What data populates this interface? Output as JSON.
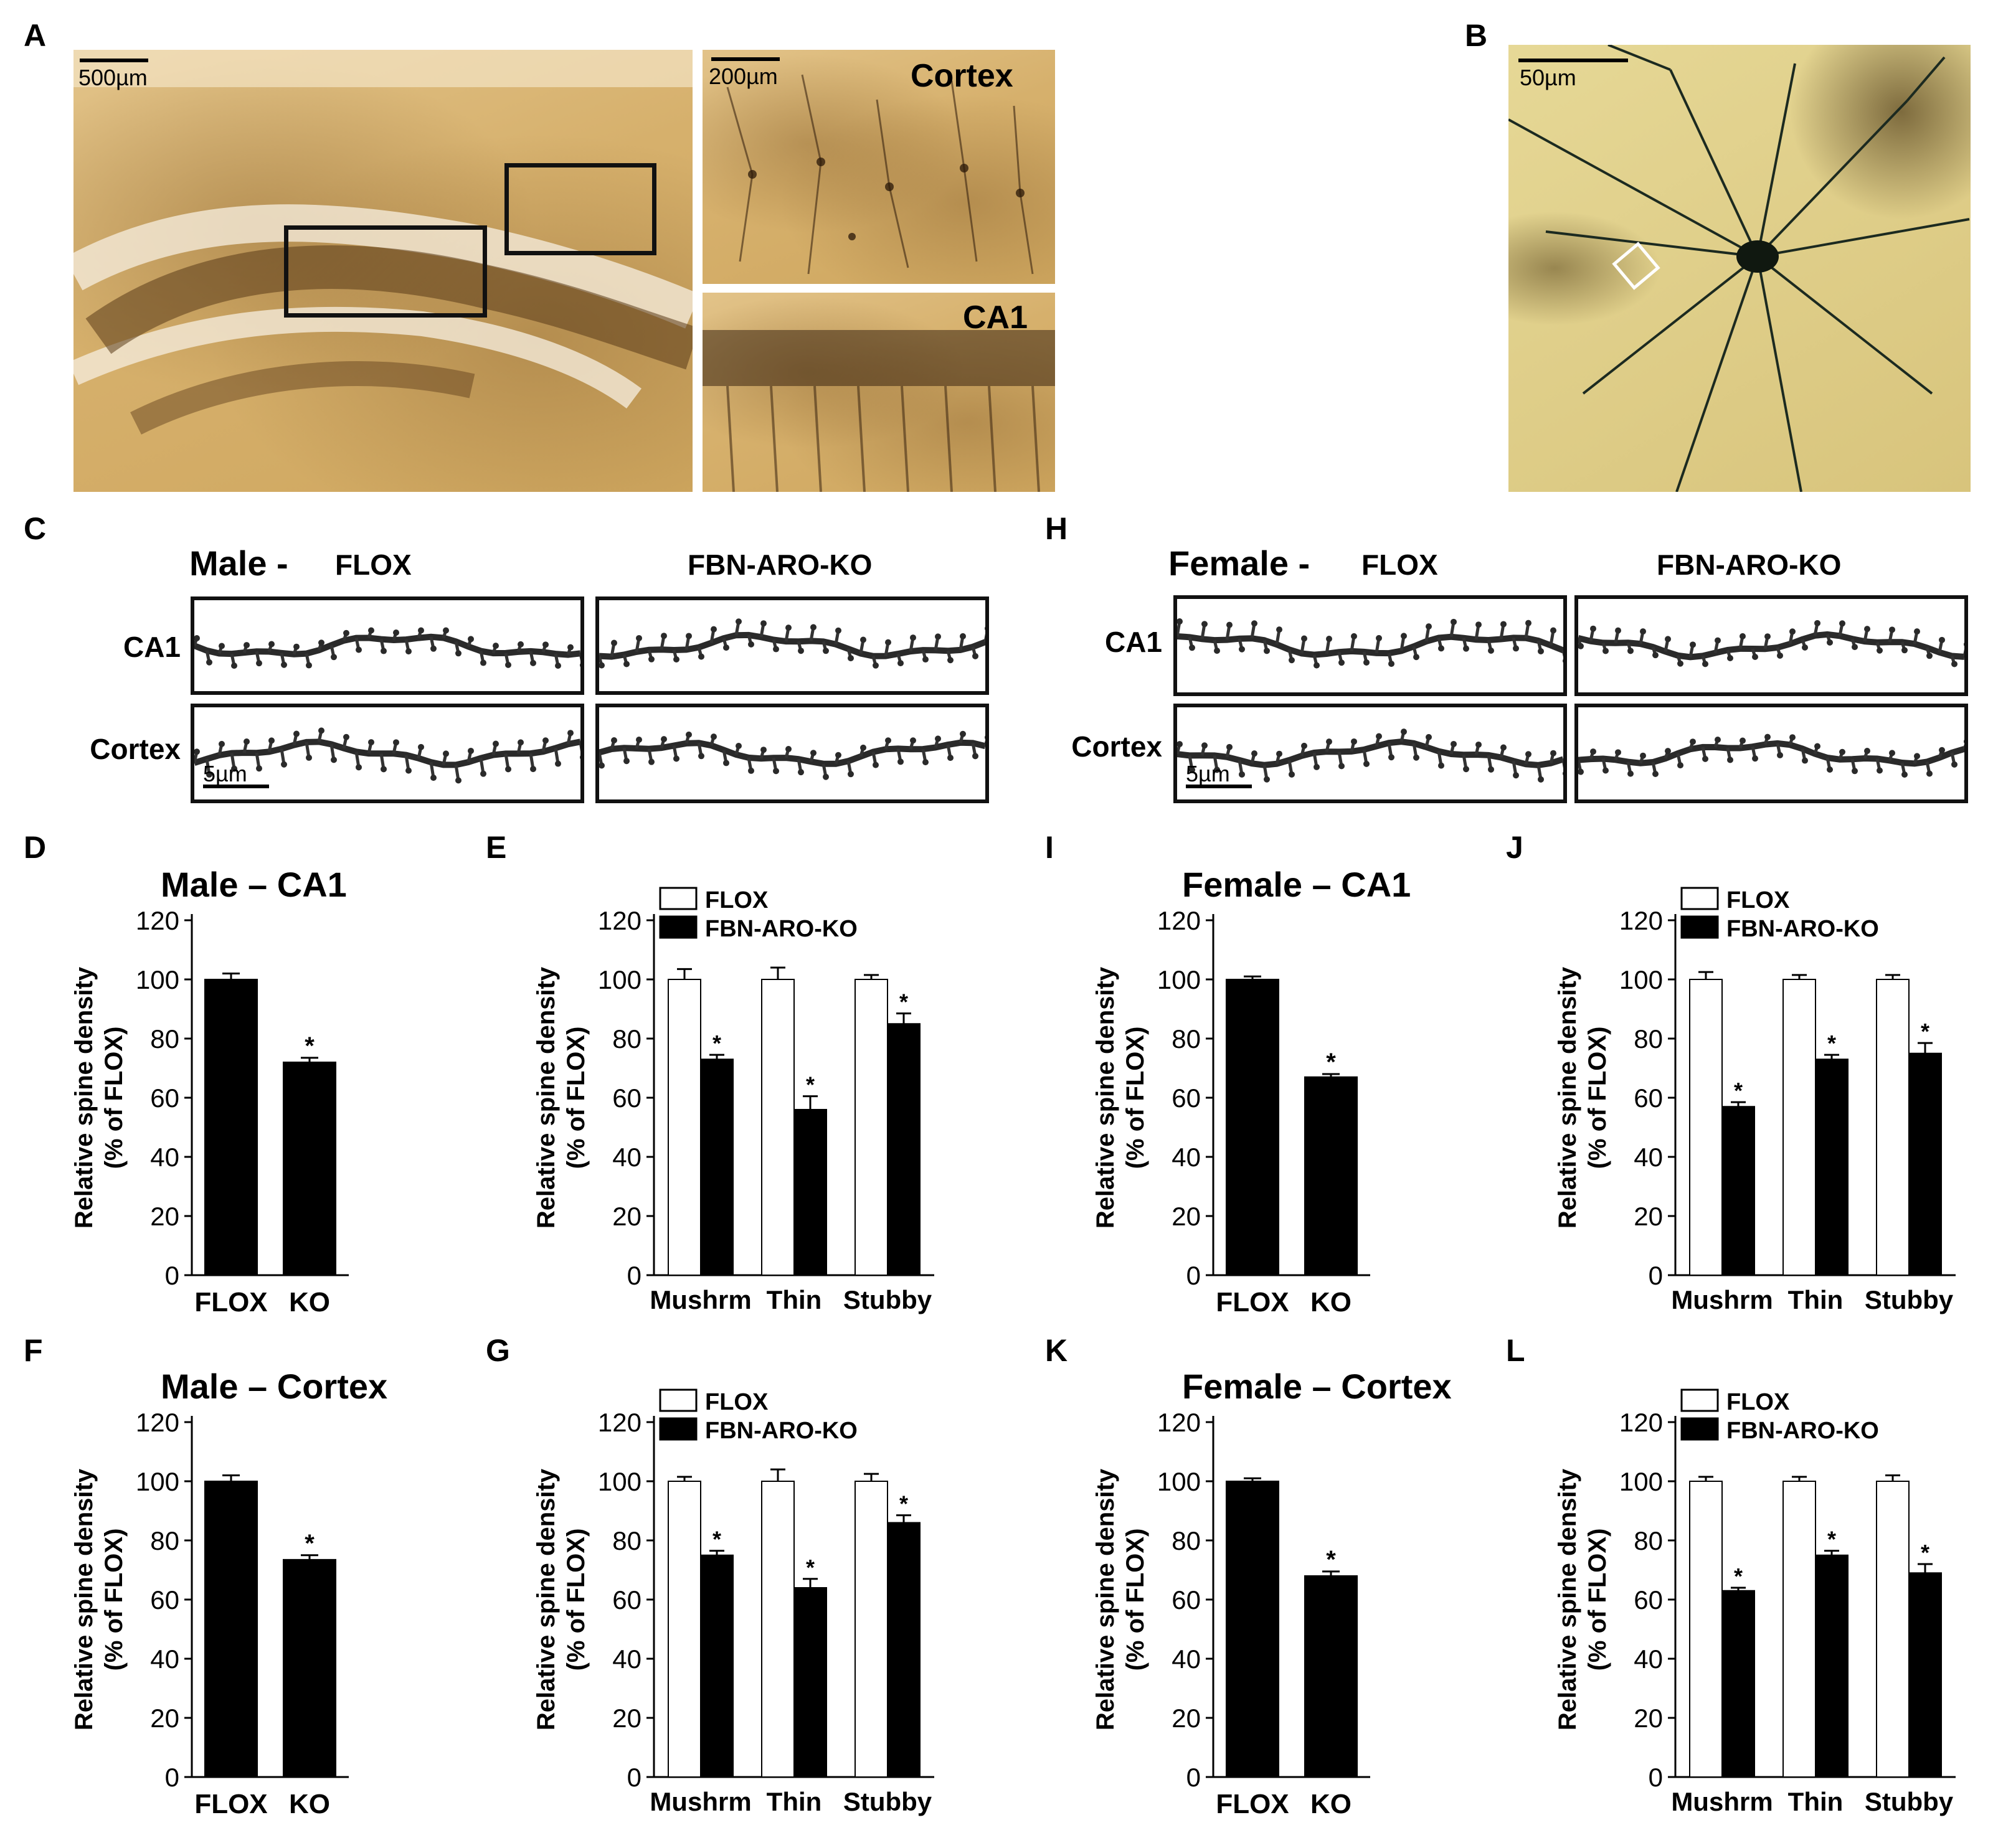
{
  "panel_letters": [
    "A",
    "B",
    "C",
    "D",
    "E",
    "F",
    "G",
    "H",
    "I",
    "J",
    "K",
    "L"
  ],
  "panel_a": {
    "scale_main": "500µm",
    "scale_inset": "200µm",
    "inset_top_label": "Cortex",
    "inset_bottom_label": "CA1"
  },
  "panel_b": {
    "scale": "50µm"
  },
  "panel_c": {
    "sex": "Male -",
    "group1": "FLOX",
    "group2": "FBN-ARO-KO",
    "row1": "CA1",
    "row2": "Cortex",
    "scale": "5µm"
  },
  "panel_h": {
    "sex": "Female -",
    "group1": "FLOX",
    "group2": "FBN-ARO-KO",
    "row1": "CA1",
    "row2": "Cortex",
    "scale": "5µm"
  },
  "chart_data": [
    {
      "panel": "D",
      "type": "bar",
      "title": "Male – CA1",
      "ylabel": "Relative spine density\n(% of FLOX)",
      "yticks": [
        0,
        20,
        40,
        60,
        80,
        100,
        120
      ],
      "ylim": [
        0,
        120
      ],
      "categories": [
        "FLOX",
        "KO"
      ],
      "series": [
        {
          "values": [
            100,
            72
          ],
          "errors": [
            2,
            1.5
          ],
          "significant": [
            false,
            true
          ]
        }
      ],
      "bar_color": "#000000"
    },
    {
      "panel": "E",
      "type": "bar",
      "title": "",
      "ylabel": "Relative spine density\n(% of FLOX)",
      "yticks": [
        0,
        20,
        40,
        60,
        80,
        100,
        120
      ],
      "ylim": [
        0,
        120
      ],
      "categories": [
        "Mushrm",
        "Thin",
        "Stubby"
      ],
      "series": [
        {
          "name": "FLOX",
          "values": [
            100,
            100,
            100
          ],
          "errors": [
            3.5,
            4,
            1.5
          ],
          "significant": [
            false,
            false,
            false
          ],
          "fill": "#ffffff"
        },
        {
          "name": "FBN-ARO-KO",
          "values": [
            73,
            56,
            85
          ],
          "errors": [
            1.5,
            4.5,
            3.5
          ],
          "significant": [
            true,
            true,
            true
          ],
          "fill": "#000000"
        }
      ]
    },
    {
      "panel": "F",
      "type": "bar",
      "title": "Male – Cortex",
      "ylabel": "Relative spine density\n(% of FLOX)",
      "yticks": [
        0,
        20,
        40,
        60,
        80,
        100,
        120
      ],
      "ylim": [
        0,
        120
      ],
      "categories": [
        "FLOX",
        "KO"
      ],
      "series": [
        {
          "values": [
            100,
            73.5
          ],
          "errors": [
            2,
            1.5
          ],
          "significant": [
            false,
            true
          ]
        }
      ],
      "bar_color": "#000000"
    },
    {
      "panel": "G",
      "type": "bar",
      "title": "",
      "ylabel": "Relative spine density\n(% of FLOX)",
      "yticks": [
        0,
        20,
        40,
        60,
        80,
        100,
        120
      ],
      "ylim": [
        0,
        120
      ],
      "categories": [
        "Mushrm",
        "Thin",
        "Stubby"
      ],
      "series": [
        {
          "name": "FLOX",
          "values": [
            100,
            100,
            100
          ],
          "errors": [
            1.5,
            4,
            2.5
          ],
          "significant": [
            false,
            false,
            false
          ],
          "fill": "#ffffff"
        },
        {
          "name": "FBN-ARO-KO",
          "values": [
            75,
            64,
            86
          ],
          "errors": [
            1.5,
            3,
            2.5
          ],
          "significant": [
            true,
            true,
            true
          ],
          "fill": "#000000"
        }
      ]
    },
    {
      "panel": "I",
      "type": "bar",
      "title": "Female – CA1",
      "ylabel": "Relative spine density\n(% of FLOX)",
      "yticks": [
        0,
        20,
        40,
        60,
        80,
        100,
        120
      ],
      "ylim": [
        0,
        120
      ],
      "categories": [
        "FLOX",
        "KO"
      ],
      "series": [
        {
          "values": [
            100,
            67
          ],
          "errors": [
            1,
            1
          ],
          "significant": [
            false,
            true
          ]
        }
      ],
      "bar_color": "#000000"
    },
    {
      "panel": "J",
      "type": "bar",
      "title": "",
      "ylabel": "Relative spine density\n(% of FLOX)",
      "yticks": [
        0,
        20,
        40,
        60,
        80,
        100,
        120
      ],
      "ylim": [
        0,
        120
      ],
      "categories": [
        "Mushrm",
        "Thin",
        "Stubby"
      ],
      "series": [
        {
          "name": "FLOX",
          "values": [
            100,
            100,
            100
          ],
          "errors": [
            2.5,
            1.5,
            1.5
          ],
          "significant": [
            false,
            false,
            false
          ],
          "fill": "#ffffff"
        },
        {
          "name": "FBN-ARO-KO",
          "values": [
            57,
            73,
            75
          ],
          "errors": [
            1.5,
            1.5,
            3.5
          ],
          "significant": [
            true,
            true,
            true
          ],
          "fill": "#000000"
        }
      ]
    },
    {
      "panel": "K",
      "type": "bar",
      "title": "Female – Cortex",
      "ylabel": "Relative spine density\n(% of FLOX)",
      "yticks": [
        0,
        20,
        40,
        60,
        80,
        100,
        120
      ],
      "ylim": [
        0,
        120
      ],
      "categories": [
        "FLOX",
        "KO"
      ],
      "series": [
        {
          "values": [
            100,
            68
          ],
          "errors": [
            1,
            1.5
          ],
          "significant": [
            false,
            true
          ]
        }
      ],
      "bar_color": "#000000"
    },
    {
      "panel": "L",
      "type": "bar",
      "title": "",
      "ylabel": "Relative spine density\n(% of FLOX)",
      "yticks": [
        0,
        20,
        40,
        60,
        80,
        100,
        120
      ],
      "ylim": [
        0,
        120
      ],
      "categories": [
        "Mushrm",
        "Thin",
        "Stubby"
      ],
      "series": [
        {
          "name": "FLOX",
          "values": [
            100,
            100,
            100
          ],
          "errors": [
            1.5,
            1.5,
            2
          ],
          "significant": [
            false,
            false,
            false
          ],
          "fill": "#ffffff"
        },
        {
          "name": "FBN-ARO-KO",
          "values": [
            63,
            75,
            69
          ],
          "errors": [
            1,
            1.5,
            3
          ],
          "significant": [
            true,
            true,
            true
          ],
          "fill": "#000000"
        }
      ]
    }
  ]
}
